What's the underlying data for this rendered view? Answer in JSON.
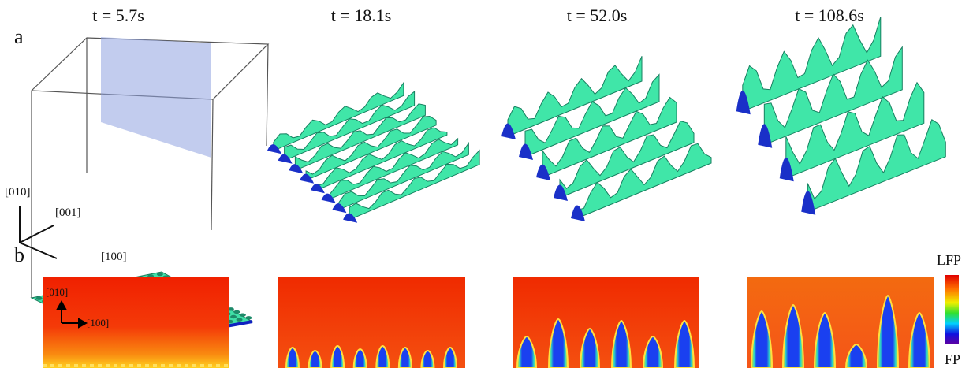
{
  "panel_a": {
    "label": "a",
    "times": [
      "t = 5.7s",
      "t = 18.1s",
      "t = 52.0s",
      "t = 108.6s"
    ],
    "axes": [
      "[010]",
      "[001]",
      "[100]"
    ]
  },
  "panel_b": {
    "label": "b",
    "axes": [
      "[010]",
      "[100]"
    ],
    "colorbar": {
      "top": "LFP",
      "bottom": "FP"
    }
  }
}
